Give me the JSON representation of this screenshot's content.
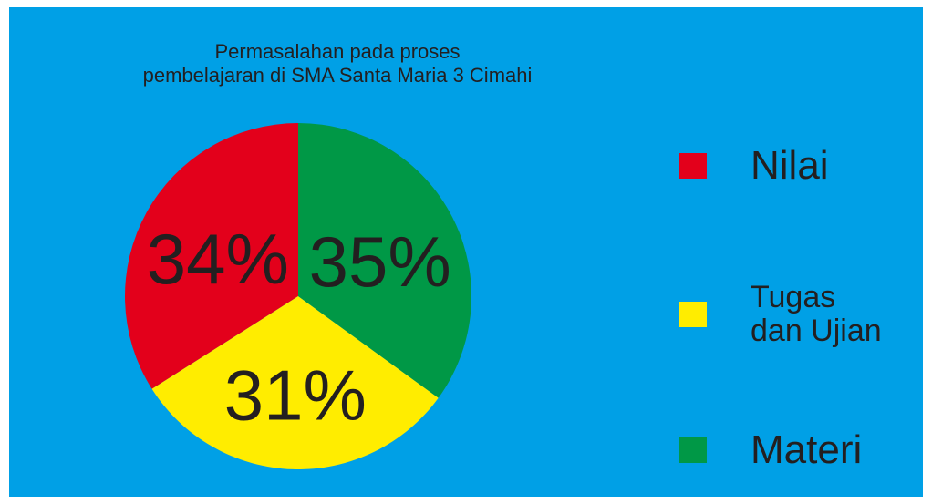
{
  "chart_data": {
    "type": "pie",
    "title": "Permasalahan pada proses\npembelajaran di SMA Santa Maria 3 Cimahi",
    "categories": [
      "Nilai",
      "Tugas\ndan Ujian",
      "Materi"
    ],
    "values": [
      34,
      31,
      35
    ],
    "value_labels": [
      "34%",
      "31%",
      "35%"
    ],
    "colors": [
      "#e3001b",
      "#ffed00",
      "#009846"
    ],
    "legend": "right"
  }
}
